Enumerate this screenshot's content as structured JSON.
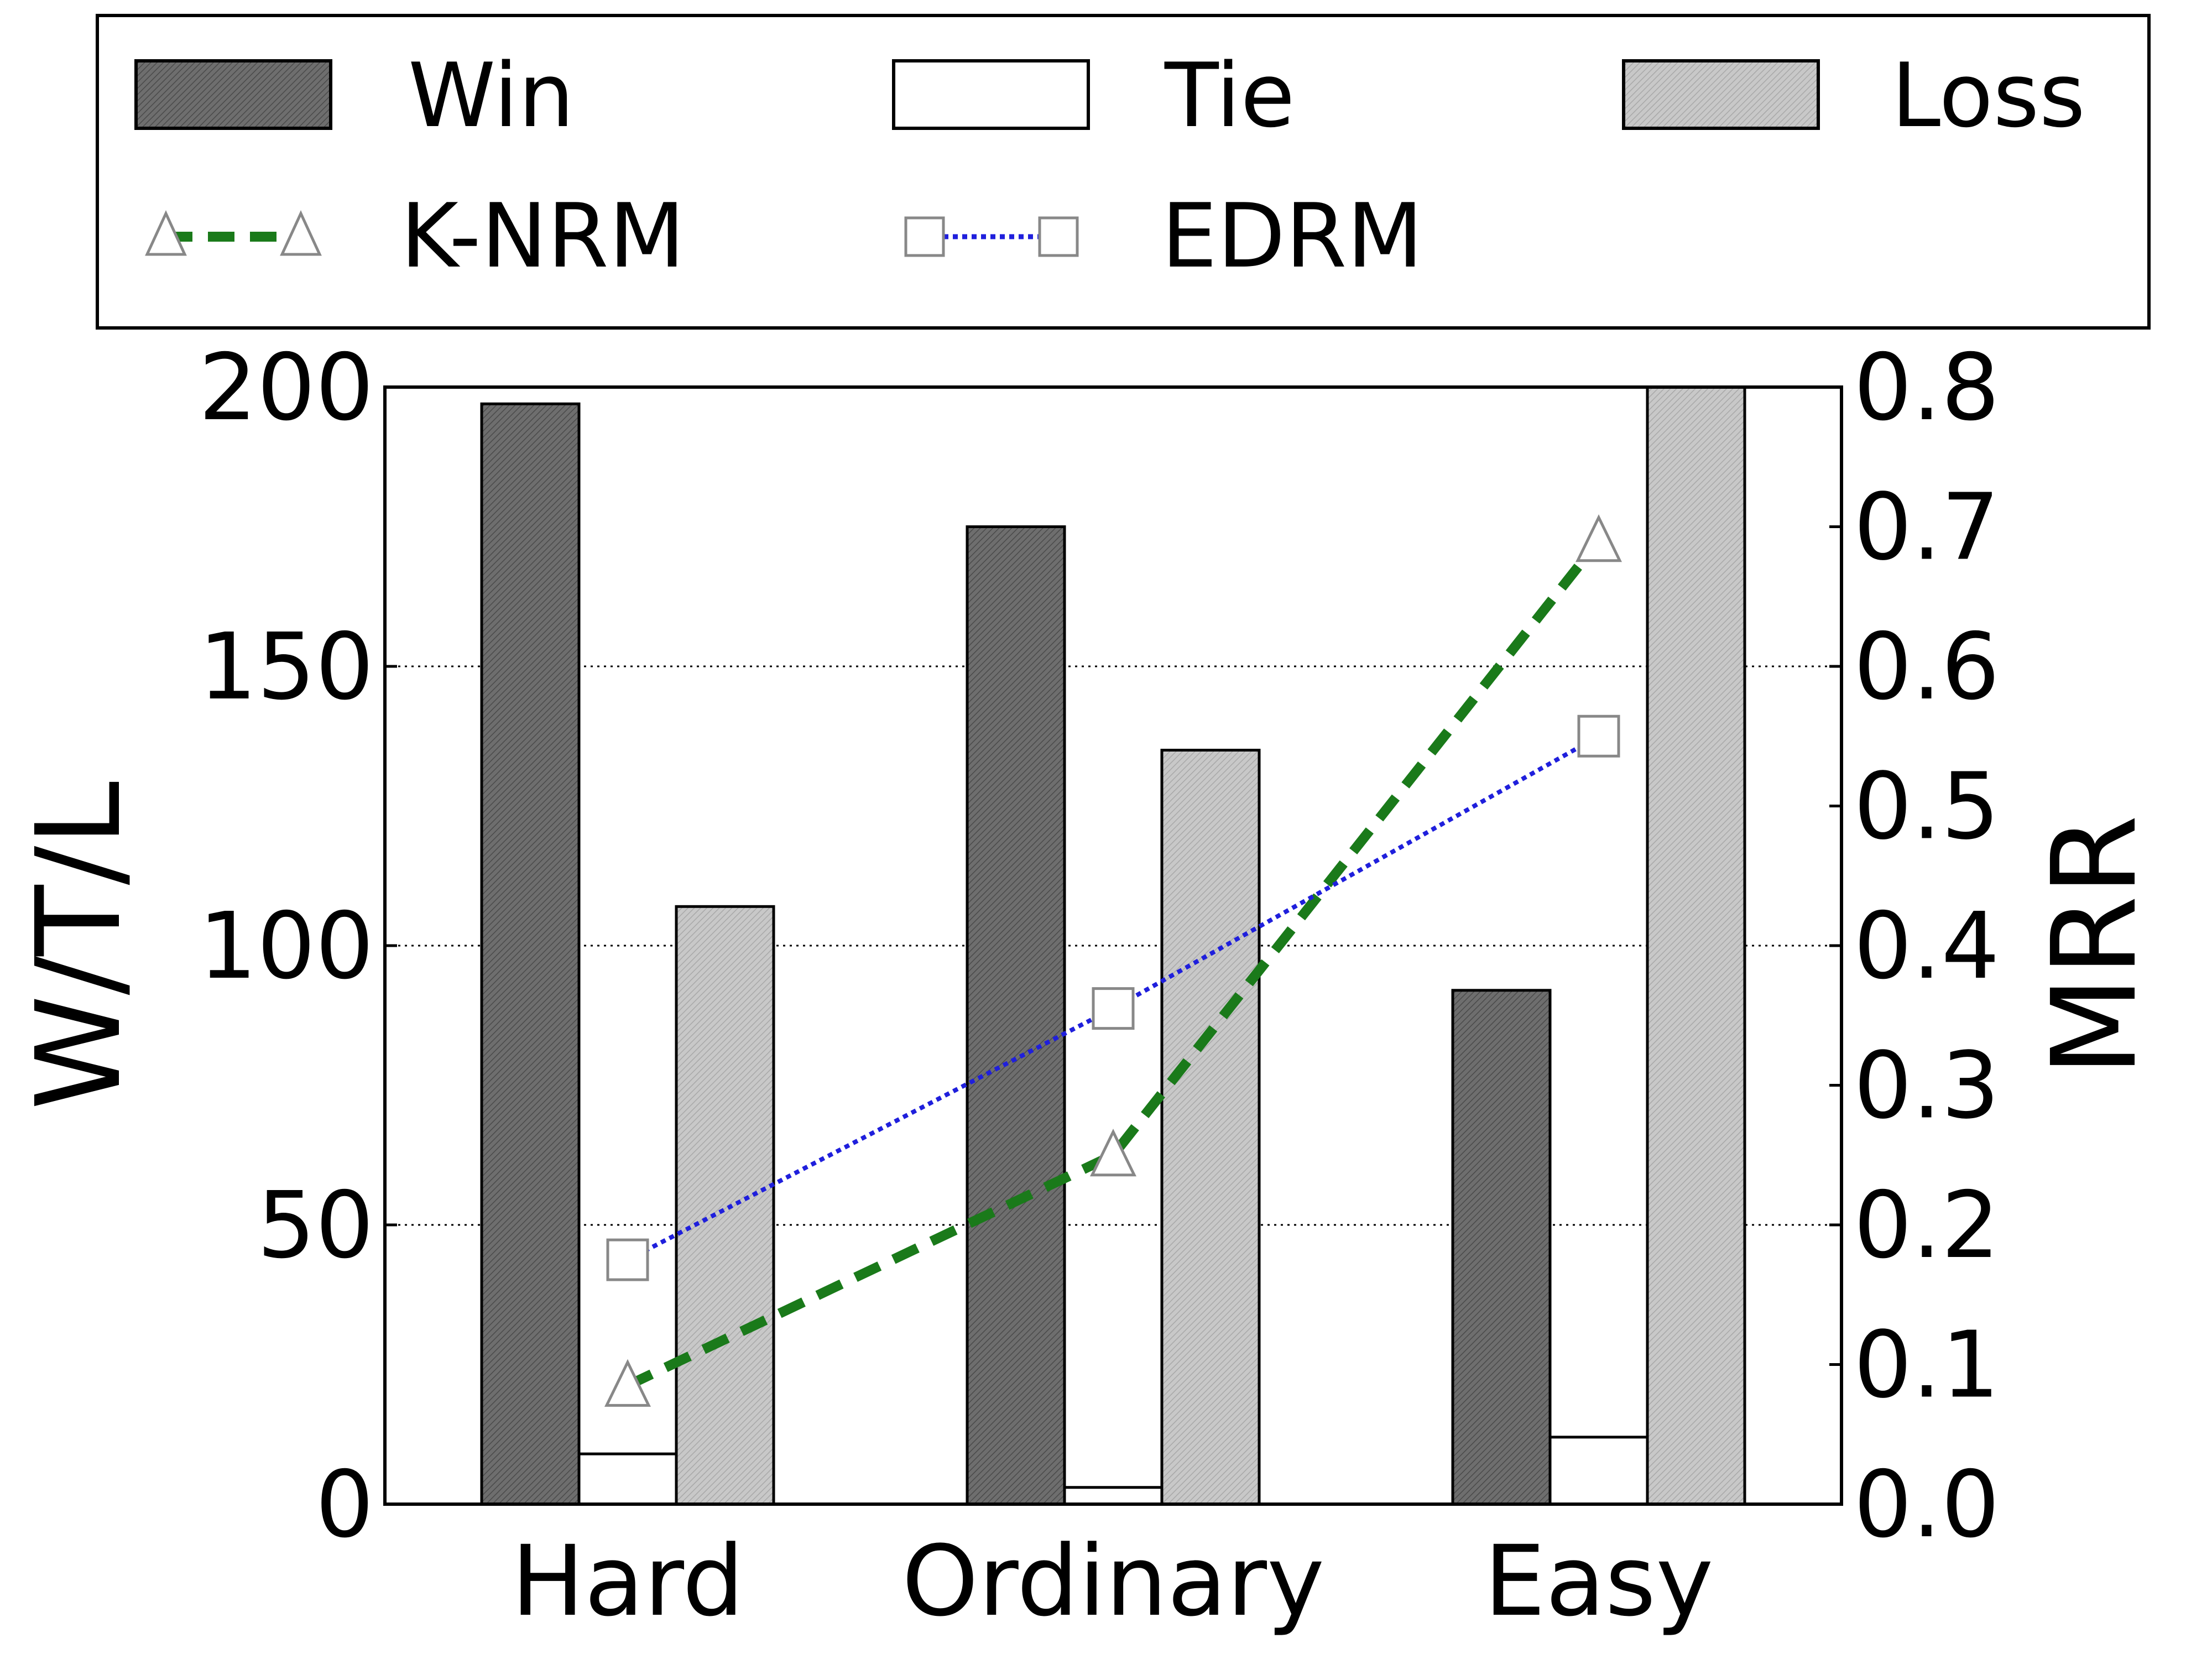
{
  "chart_data": {
    "type": "bar",
    "categories": [
      "Hard",
      "Ordinary",
      "Easy"
    ],
    "series": [
      {
        "name": "Win",
        "values": [
          197,
          175,
          92
        ],
        "fill": "#6e6e6e"
      },
      {
        "name": "Tie",
        "values": [
          9,
          3,
          12
        ],
        "fill": "#ffffff"
      },
      {
        "name": "Loss",
        "values": [
          107,
          135,
          200
        ],
        "fill": "#c8c8c8"
      }
    ],
    "lines": [
      {
        "name": "K-NRM",
        "values": [
          0.085,
          0.25,
          0.69
        ],
        "color": "#1a7a1a",
        "style": "dashed",
        "marker": "triangle"
      },
      {
        "name": "EDRM",
        "values": [
          0.175,
          0.355,
          0.55
        ],
        "color": "#1f1fdc",
        "style": "dotted",
        "marker": "square"
      }
    ],
    "ylabel": "W/T/L",
    "y2label": "MRR",
    "ylim": [
      0,
      200
    ],
    "y2lim": [
      0.0,
      0.8
    ],
    "yticks": [
      "0",
      "50",
      "100",
      "150",
      "200"
    ],
    "y2ticks": [
      "0.0",
      "0.1",
      "0.2",
      "0.3",
      "0.4",
      "0.5",
      "0.6",
      "0.7",
      "0.8"
    ],
    "grid": "horizontal dotted at y ticks",
    "legend": {
      "placement": "top",
      "entries": [
        "Win",
        "Tie",
        "Loss",
        "K-NRM",
        "EDRM"
      ]
    }
  }
}
